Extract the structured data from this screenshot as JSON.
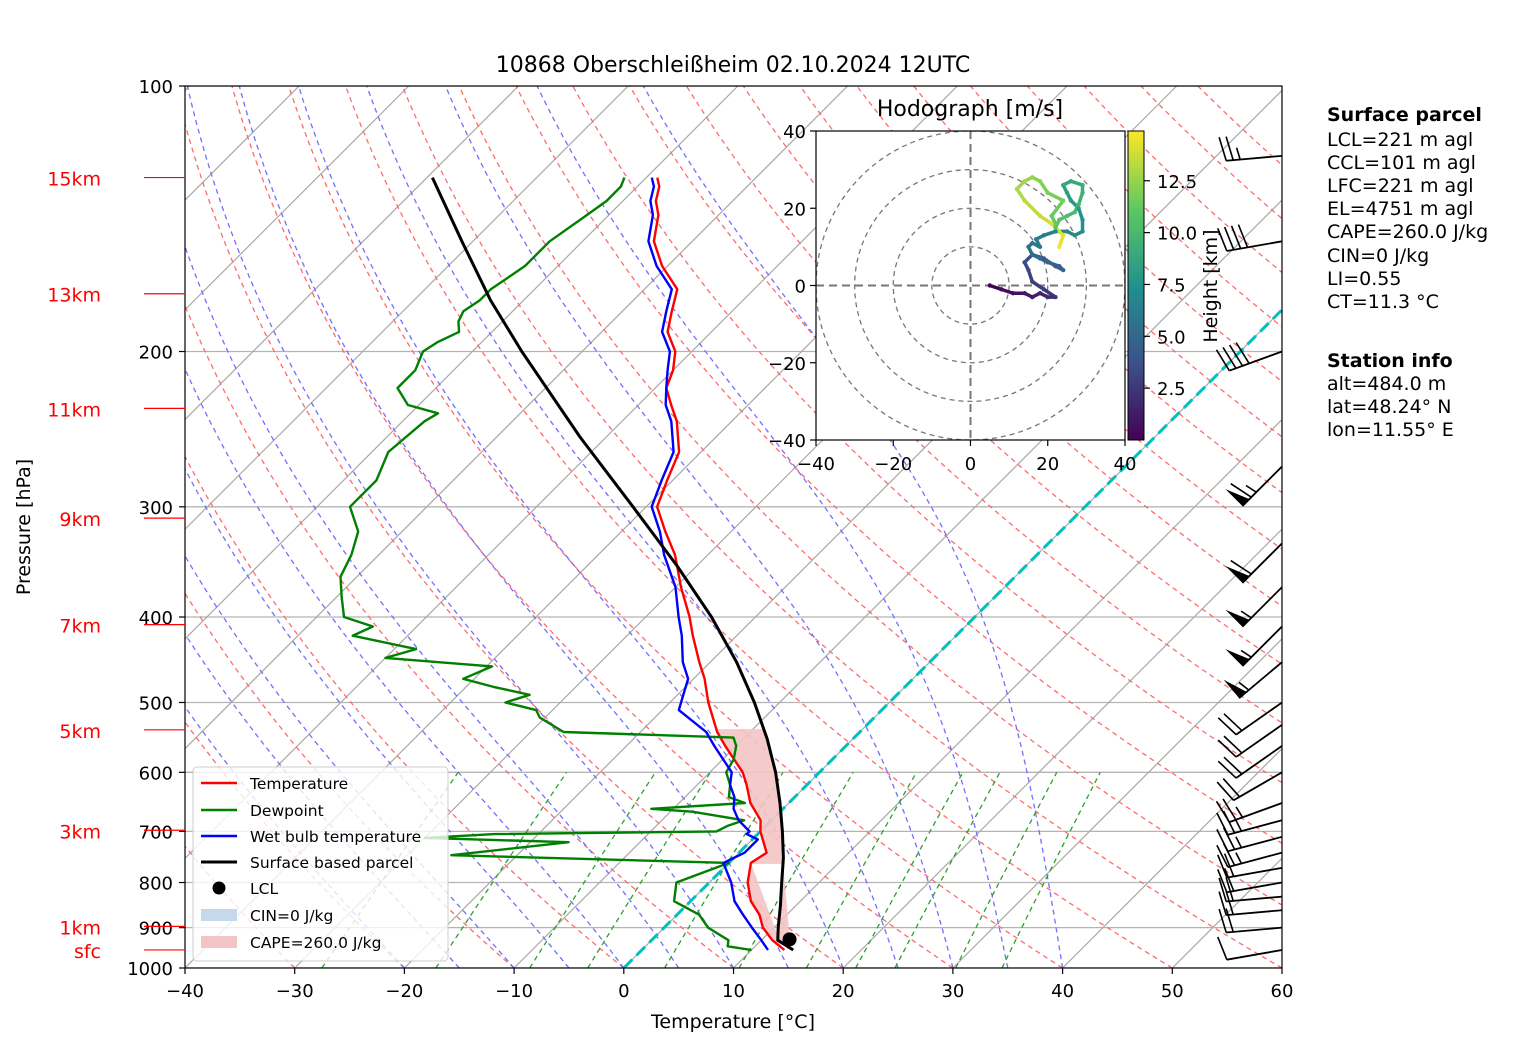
{
  "chart_data": [
    {
      "type": "line",
      "subtype": "skew-T log-P diagram",
      "title": "10868 Oberschleißheim 02.10.2024 12UTC",
      "xlabel": "Temperature [°C]",
      "ylabel": "Pressure [hPa]",
      "xlim": [
        -40,
        60
      ],
      "ylim": [
        1000,
        100
      ],
      "yscale": "log",
      "x_ticks": [
        -40,
        -30,
        -20,
        -10,
        0,
        10,
        20,
        30,
        40,
        50,
        60
      ],
      "x_tick_labels": [
        "−40",
        "−30",
        "−20",
        "−10",
        "0",
        "10",
        "20",
        "30",
        "40",
        "50",
        "60"
      ],
      "y_ticks": [
        100,
        200,
        300,
        400,
        500,
        600,
        700,
        800,
        900,
        1000
      ],
      "y_tick_labels": [
        "100",
        "200",
        "300",
        "400",
        "500",
        "600",
        "700",
        "800",
        "900",
        "1000"
      ],
      "height_labels": [
        {
          "label": "sfc",
          "p": 954
        },
        {
          "label": "1km",
          "p": 897
        },
        {
          "label": "3km",
          "p": 698
        },
        {
          "label": "5km",
          "p": 537
        },
        {
          "label": "7km",
          "p": 408
        },
        {
          "label": "9km",
          "p": 309
        },
        {
          "label": "11km",
          "p": 232
        },
        {
          "label": "13km",
          "p": 172
        },
        {
          "label": "15km",
          "p": 127
        }
      ],
      "grid": true,
      "legend_position": "lower-left",
      "series": [
        {
          "name": "Temperature",
          "color": "#ff0000",
          "p": [
            954,
            930,
            900,
            870,
            840,
            800,
            760,
            740,
            700,
            680,
            650,
            620,
            600,
            560,
            540,
            500,
            470,
            450,
            420,
            400,
            370,
            340,
            320,
            300,
            280,
            260,
            240,
            230,
            220,
            210,
            200,
            190,
            180,
            170,
            160,
            150,
            140,
            135,
            130,
            127
          ],
          "t": [
            13.0,
            11.0,
            9.0,
            7.5,
            5.5,
            3.5,
            2.0,
            2.5,
            0.0,
            -1.0,
            -3.5,
            -5.5,
            -7.0,
            -11.0,
            -13.0,
            -16.5,
            -19.0,
            -21.0,
            -24.0,
            -26.0,
            -29.5,
            -33.0,
            -36.0,
            -39.0,
            -40.5,
            -42.0,
            -45.0,
            -47.0,
            -49.0,
            -50.0,
            -51.5,
            -54.0,
            -55.5,
            -57.0,
            -60.5,
            -63.5,
            -65.5,
            -67.0,
            -68.0,
            -69.0
          ]
        },
        {
          "name": "Dewpoint",
          "color": "#008000",
          "p": [
            954,
            945,
            930,
            900,
            870,
            840,
            800,
            760,
            745,
            720,
            712,
            705,
            700,
            690,
            680,
            665,
            660,
            650,
            640,
            620,
            600,
            580,
            560,
            548,
            540,
            520,
            510,
            500,
            490,
            480,
            470,
            455,
            445,
            435,
            420,
            410,
            400,
            380,
            360,
            340,
            320,
            300,
            280,
            260,
            240,
            235,
            230,
            220,
            210,
            200,
            195,
            190,
            185,
            180,
            175,
            170,
            160,
            150,
            140,
            135,
            130,
            127
          ],
          "t": [
            10.0,
            7.5,
            7.0,
            4.0,
            2.0,
            -1.5,
            -3.0,
            0.0,
            -26.0,
            -16.5,
            -30.0,
            -24.0,
            -4.0,
            -3.5,
            -2.5,
            -8.0,
            -12.0,
            -4.0,
            -6.0,
            -7.0,
            -8.5,
            -9.0,
            -10.0,
            -11.0,
            -27.0,
            -30.5,
            -31.5,
            -35.0,
            -33.5,
            -37.5,
            -41.0,
            -39.5,
            -50.0,
            -48.0,
            -55.0,
            -54.0,
            -57.5,
            -59.5,
            -61.5,
            -62.5,
            -64.0,
            -67.0,
            -67.0,
            -68.5,
            -68.0,
            -67.5,
            -71.0,
            -73.5,
            -73.5,
            -74.5,
            -74.0,
            -73.0,
            -74.0,
            -74.5,
            -74.0,
            -74.0,
            -73.0,
            -73.0,
            -72.0,
            -71.5,
            -71.5,
            -72.0
          ]
        },
        {
          "name": "Wet bulb temperature",
          "color": "#0000ff",
          "p": [
            954,
            930,
            900,
            870,
            840,
            800,
            760,
            740,
            715,
            705,
            700,
            680,
            660,
            640,
            620,
            600,
            560,
            540,
            510,
            470,
            450,
            420,
            400,
            370,
            340,
            320,
            300,
            280,
            260,
            240,
            230,
            220,
            210,
            200,
            190,
            180,
            170,
            160,
            150,
            140,
            135,
            130,
            127
          ],
          "t": [
            11.5,
            10.0,
            8.0,
            6.0,
            4.0,
            2.0,
            -0.5,
            0.5,
            0.5,
            -1.0,
            -1.0,
            -3.0,
            -4.5,
            -5.5,
            -7.0,
            -8.0,
            -12.0,
            -14.0,
            -18.5,
            -20.5,
            -22.5,
            -25.0,
            -27.0,
            -30.0,
            -34.0,
            -36.5,
            -39.5,
            -41.0,
            -42.5,
            -45.5,
            -47.5,
            -49.0,
            -50.5,
            -52.0,
            -54.5,
            -56.0,
            -57.5,
            -61.0,
            -64.0,
            -66.0,
            -67.5,
            -68.5,
            -69.5
          ]
        },
        {
          "name": "Surface based parcel",
          "color": "#000000",
          "p": [
            954,
            930,
            900,
            850,
            800,
            750,
            700,
            650,
            600,
            550,
            500,
            450,
            400,
            350,
            300,
            250,
            200,
            175,
            150,
            127
          ],
          "t": [
            13.8,
            11.5,
            10.4,
            8.6,
            6.6,
            4.5,
            2.0,
            -0.8,
            -4.0,
            -7.8,
            -12.3,
            -17.6,
            -24.0,
            -31.8,
            -41.2,
            -52.4,
            -65.5,
            -73.0,
            -81.0,
            -89.5
          ]
        }
      ],
      "lcl_marker": {
        "label": "LCL",
        "t": 12.5,
        "p": 928
      },
      "cin_label": "CIN=0 J/kg",
      "cape_label": "CAPE=260.0 J/kg",
      "freezing_line": {
        "color": "#00c0c0",
        "t": 0
      }
    },
    {
      "type": "scatter",
      "subtype": "hodograph",
      "title": "Hodograph [m/s]",
      "xlim": [
        -40,
        40
      ],
      "ylim": [
        -40,
        40
      ],
      "x_ticks": [
        -40,
        -20,
        0,
        20,
        40
      ],
      "x_tick_labels": [
        "−40",
        "−20",
        "0",
        "20",
        "40"
      ],
      "y_ticks": [
        40,
        20,
        0,
        -20,
        -40
      ],
      "y_tick_labels": [
        "40",
        "20",
        "0",
        "−20",
        "−40"
      ],
      "rings": [
        10,
        20,
        30,
        40
      ],
      "colorbar_label": "Height [km]",
      "colorbar_ticks": [
        "2.5",
        "5.0",
        "7.5",
        "10.0",
        "12.5"
      ],
      "colormap": "viridis",
      "points": {
        "u": [
          5,
          8,
          11,
          14,
          16,
          18,
          20,
          22,
          19,
          16,
          15,
          14,
          16,
          19,
          22,
          24,
          23,
          20,
          18,
          16,
          15,
          16,
          18,
          17,
          19,
          22,
          25,
          27,
          29,
          29,
          28,
          26,
          25,
          24,
          26,
          29,
          29,
          28,
          27,
          25,
          23,
          22,
          22,
          21,
          24,
          20,
          18,
          16,
          14,
          12,
          14,
          18,
          21,
          24,
          23
        ],
        "v": [
          0,
          -1,
          -2,
          -2,
          -3,
          -2,
          -3,
          -3,
          -1,
          1,
          4,
          6,
          8,
          7,
          5,
          4,
          5,
          6,
          7,
          8,
          10,
          11,
          10,
          12,
          13,
          14,
          14,
          13,
          14,
          17,
          20,
          22,
          24,
          26,
          27,
          26,
          24,
          21,
          19,
          18,
          17,
          15,
          16,
          18,
          22,
          24,
          27,
          28,
          27,
          25,
          22,
          18,
          16,
          13,
          10
        ],
        "height": [
          0.2,
          0.5,
          0.8,
          1.0,
          1.3,
          1.6,
          2.0,
          2.4,
          2.8,
          3.0,
          3.3,
          3.6,
          3.8,
          4.0,
          4.3,
          4.6,
          4.9,
          5.1,
          5.3,
          5.5,
          5.7,
          5.9,
          6.1,
          6.3,
          6.5,
          6.8,
          7.0,
          7.2,
          7.5,
          7.7,
          8.0,
          8.2,
          8.5,
          8.8,
          9.0,
          9.3,
          9.6,
          9.9,
          10.2,
          10.5,
          10.8,
          11.0,
          11.3,
          11.5,
          11.8,
          12.0,
          12.3,
          12.6,
          12.9,
          13.2,
          13.5,
          13.8,
          14.1,
          14.4,
          14.7
        ]
      }
    }
  ],
  "wind_barbs": [
    {
      "p": 954,
      "speed_kt": 10,
      "dir_deg": 260
    },
    {
      "p": 900,
      "speed_kt": 20,
      "dir_deg": 265
    },
    {
      "p": 860,
      "speed_kt": 20,
      "dir_deg": 265
    },
    {
      "p": 830,
      "speed_kt": 20,
      "dir_deg": 265
    },
    {
      "p": 800,
      "speed_kt": 20,
      "dir_deg": 260
    },
    {
      "p": 770,
      "speed_kt": 20,
      "dir_deg": 260
    },
    {
      "p": 740,
      "speed_kt": 25,
      "dir_deg": 255
    },
    {
      "p": 710,
      "speed_kt": 25,
      "dir_deg": 255
    },
    {
      "p": 680,
      "speed_kt": 25,
      "dir_deg": 255
    },
    {
      "p": 650,
      "speed_kt": 25,
      "dir_deg": 250
    },
    {
      "p": 600,
      "speed_kt": 20,
      "dir_deg": 240
    },
    {
      "p": 560,
      "speed_kt": 20,
      "dir_deg": 235
    },
    {
      "p": 530,
      "speed_kt": 20,
      "dir_deg": 235
    },
    {
      "p": 500,
      "speed_kt": 20,
      "dir_deg": 235
    },
    {
      "p": 450,
      "speed_kt": 55,
      "dir_deg": 230
    },
    {
      "p": 410,
      "speed_kt": 55,
      "dir_deg": 225
    },
    {
      "p": 370,
      "speed_kt": 55,
      "dir_deg": 225
    },
    {
      "p": 330,
      "speed_kt": 60,
      "dir_deg": 225
    },
    {
      "p": 270,
      "speed_kt": 65,
      "dir_deg": 225
    },
    {
      "p": 200,
      "speed_kt": 40,
      "dir_deg": 250
    },
    {
      "p": 150,
      "speed_kt": 40,
      "dir_deg": 260
    },
    {
      "p": 120,
      "speed_kt": 25,
      "dir_deg": 265
    }
  ],
  "surface_parcel": {
    "heading": "Surface parcel",
    "lines": [
      "LCL=221 m agl",
      "CCL=101 m agl",
      "LFC=221 m agl",
      "EL=4751 m agl",
      "CAPE=260.0 J/kg",
      "CIN=0 J/kg",
      "LI=0.55",
      "CT=11.3 °C"
    ]
  },
  "station_info": {
    "heading": "Station info",
    "lines": [
      "alt=484.0 m",
      "lat=48.24° N",
      "lon=11.55° E"
    ]
  },
  "colors": {
    "temperature": "#ff0000",
    "dewpoint": "#008000",
    "wetbulb": "#0000ff",
    "parcel": "#000000",
    "dry_adiabat": "#ff6b6b",
    "moist_adiabat": "#7070ff",
    "mixing_ratio": "#2ca02c",
    "isotherm": "#a8a8a8",
    "freezing_line": "#00c0c0",
    "cape_fill": "#f4c4c4",
    "cin_fill": "#c6d9ea",
    "height_label": "#ff0000"
  }
}
